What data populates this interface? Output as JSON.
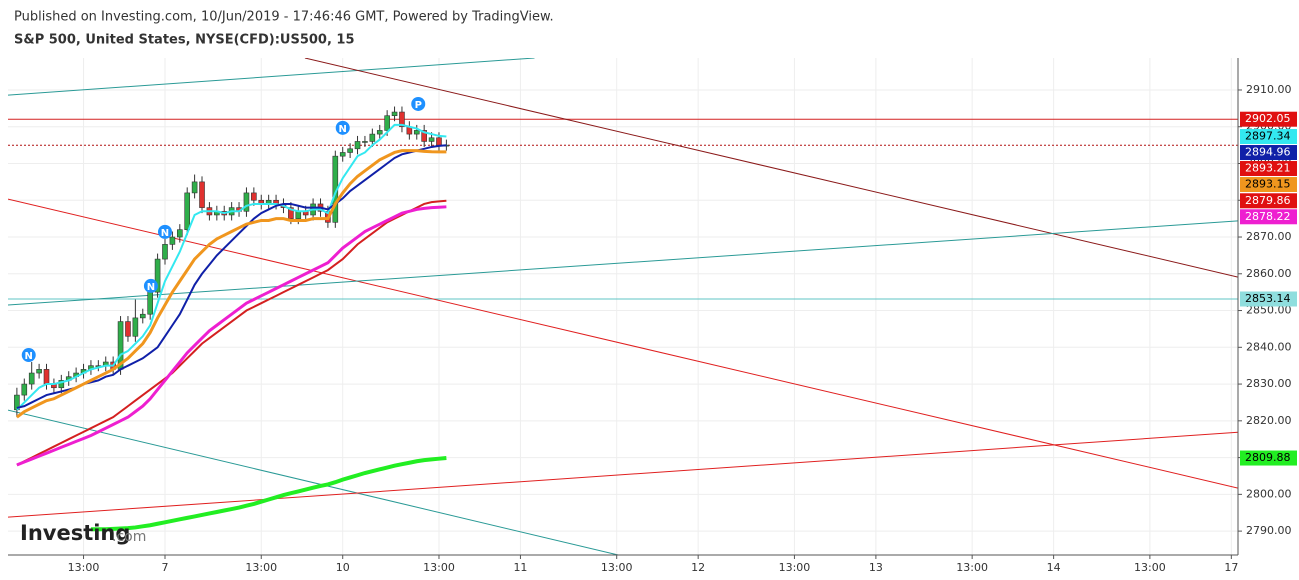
{
  "chart_data": {
    "type": "candlestick",
    "published": "Published on Investing.com, 10/Jun/2019 - 17:46:46 GMT, Powered by TradingView.",
    "title": "S&P 500, United States, NYSE(CFD):US500, 15",
    "logo": "Investing",
    "logo_suffix": ".com",
    "up_color": "#2fae4a",
    "down_color": "#e0312f",
    "x": [
      4,
      5,
      6,
      7,
      8,
      9,
      10,
      11,
      12,
      13,
      14,
      15,
      16,
      17,
      18,
      19,
      20,
      21,
      22,
      23,
      24,
      25,
      26,
      27,
      28,
      29,
      30,
      31,
      32,
      33,
      34,
      35,
      36,
      37,
      38,
      39,
      40,
      41,
      42,
      43,
      44,
      45,
      46,
      47,
      48,
      49,
      50,
      51,
      52,
      53,
      54,
      55,
      56,
      57,
      58,
      59,
      60,
      61,
      62
    ],
    "open": [
      2823,
      2827,
      2830,
      2833,
      2834,
      2830,
      2829,
      2831,
      2832,
      2833,
      2834,
      2835,
      2835,
      2836,
      2834,
      2847,
      2843,
      2848,
      2849,
      2855,
      2864,
      2868,
      2870,
      2872,
      2882,
      2885,
      2878,
      2876,
      2877,
      2876,
      2878,
      2877,
      2882,
      2880,
      2879,
      2880,
      2879,
      2878,
      2875,
      2877,
      2876,
      2879,
      2877,
      2874,
      2892,
      2893,
      2894,
      2896,
      2896,
      2898,
      2899,
      2903,
      2904,
      2900,
      2898,
      2899,
      2896,
      2897,
      2895
    ],
    "high": [
      2829,
      2831.5,
      2836,
      2835.5,
      2835.5,
      2831.5,
      2832.5,
      2833.5,
      2834.5,
      2835.5,
      2836.5,
      2836.5,
      2837.5,
      2837.5,
      2848.5,
      2848.5,
      2853,
      2850.5,
      2856.5,
      2865.5,
      2869.5,
      2871.5,
      2873.5,
      2883.5,
      2887,
      2886.5,
      2879.5,
      2878.5,
      2878.5,
      2879.5,
      2879.5,
      2883.5,
      2883.5,
      2881.5,
      2881.5,
      2881.5,
      2880.5,
      2879.5,
      2878.5,
      2878.5,
      2880.5,
      2880.5,
      2878.5,
      2893.5,
      2894.5,
      2895.5,
      2897.5,
      2897.5,
      2899.5,
      2900.5,
      2904.5,
      2905.5,
      2905.5,
      2901.5,
      2900.5,
      2900.5,
      2898.5,
      2898.5,
      2896.5
    ],
    "low": [
      2821,
      2825.5,
      2828.5,
      2831.5,
      2828.5,
      2827.5,
      2827.5,
      2829.5,
      2830.5,
      2831.5,
      2832.5,
      2833.5,
      2833.5,
      2832.5,
      2832.5,
      2841.5,
      2841.5,
      2846.5,
      2847.5,
      2853.5,
      2862.5,
      2866.5,
      2868.5,
      2870.5,
      2880.5,
      2876.5,
      2874.5,
      2874.5,
      2874.5,
      2874.5,
      2875.5,
      2875.5,
      2878.5,
      2877.5,
      2877.5,
      2877.5,
      2876.5,
      2873.5,
      2873.5,
      2874.5,
      2874.5,
      2875.5,
      2872.5,
      2872.5,
      2890.5,
      2891.5,
      2892.5,
      2894.5,
      2894.5,
      2896.5,
      2897.5,
      2901.5,
      2898.5,
      2896.5,
      2896.5,
      2894.5,
      2894.5,
      2893.5,
      2893.5
    ],
    "close": [
      2827,
      2830,
      2833,
      2834,
      2830,
      2829,
      2831,
      2832,
      2833,
      2834,
      2835,
      2835,
      2836,
      2834,
      2847,
      2843,
      2848,
      2849,
      2855,
      2864,
      2868,
      2870,
      2872,
      2882,
      2885,
      2878,
      2876,
      2877,
      2876,
      2878,
      2877,
      2882,
      2880,
      2879,
      2880,
      2879,
      2878,
      2875,
      2877,
      2876,
      2879,
      2877,
      2874,
      2892,
      2893,
      2894,
      2896,
      2896,
      2898,
      2899,
      2903,
      2904,
      2900,
      2898,
      2899,
      2896,
      2897,
      2895,
      2895
    ],
    "series": [
      {
        "color": "#33e8f0",
        "width": 2,
        "values": [
          2823,
          2825,
          2827,
          2829,
          2830,
          2830,
          2830.5,
          2831,
          2832,
          2833,
          2834,
          2834.5,
          2835,
          2835,
          2838,
          2839,
          2841,
          2843,
          2846,
          2852,
          2858,
          2862,
          2866,
          2871,
          2876,
          2877,
          2877,
          2877,
          2876.5,
          2877,
          2877,
          2878.5,
          2879,
          2879,
          2879,
          2879,
          2878.5,
          2877.5,
          2877,
          2877,
          2877.5,
          2877.5,
          2876.5,
          2882,
          2886,
          2889,
          2892,
          2893,
          2895,
          2896.5,
          2898.5,
          2900.5,
          2900.5,
          2900,
          2899.5,
          2898.5,
          2898,
          2897.5,
          2897.34
        ]
      },
      {
        "color": "#1020a8",
        "width": 2,
        "values": [
          2823.5,
          2824,
          2825,
          2826,
          2827,
          2827.5,
          2828,
          2828.5,
          2829,
          2830,
          2830.5,
          2831,
          2832,
          2832.5,
          2834,
          2835,
          2836,
          2837,
          2838.5,
          2840,
          2843,
          2846,
          2849,
          2853,
          2857,
          2860,
          2862.5,
          2865,
          2867,
          2869,
          2871,
          2873,
          2875,
          2876.5,
          2877.5,
          2878.5,
          2879,
          2879,
          2878.5,
          2878,
          2878,
          2878,
          2877.5,
          2879,
          2880.5,
          2882.5,
          2884,
          2885.5,
          2887,
          2888.5,
          2890,
          2891.5,
          2892.5,
          2893,
          2893.5,
          2894,
          2894.5,
          2894.8,
          2894.96
        ]
      },
      {
        "color": "#f0961e",
        "width": 3,
        "values": [
          2821,
          2822.5,
          2823.5,
          2824.5,
          2825.5,
          2826,
          2827,
          2828,
          2829,
          2830,
          2831,
          2832,
          2833,
          2834,
          2835.5,
          2837,
          2839,
          2841,
          2844,
          2848,
          2851.5,
          2855,
          2858,
          2861,
          2864,
          2866,
          2868,
          2869.5,
          2870.5,
          2871.5,
          2872.5,
          2873.5,
          2874,
          2874.5,
          2874.5,
          2875,
          2875,
          2874.5,
          2874.5,
          2874.5,
          2875,
          2875,
          2875,
          2879,
          2882,
          2884.5,
          2886.5,
          2888,
          2889.5,
          2891,
          2892,
          2893,
          2893.5,
          2893.5,
          2893.5,
          2893.3,
          2893.2,
          2893.15,
          2893.15
        ]
      },
      {
        "color": "#d42020",
        "width": 2,
        "values": [
          2808,
          2809,
          2810,
          2811,
          2812,
          2813,
          2814,
          2815,
          2816,
          2817,
          2818,
          2819,
          2820,
          2821,
          2822.5,
          2824,
          2825.5,
          2827,
          2828.5,
          2830,
          2831.5,
          2833,
          2835,
          2837,
          2839,
          2841,
          2842.5,
          2844,
          2845.5,
          2847,
          2848.5,
          2850,
          2851,
          2852,
          2853,
          2854,
          2855,
          2856,
          2857,
          2858,
          2859,
          2860,
          2861,
          2862.5,
          2864,
          2866,
          2868,
          2869.5,
          2871,
          2872.5,
          2874,
          2875,
          2876,
          2877,
          2878,
          2879,
          2879.5,
          2879.7,
          2879.86
        ]
      },
      {
        "color": "#ee1fd0",
        "width": 3,
        "values": [
          2808,
          2808.8,
          2809.6,
          2810.4,
          2811.2,
          2812,
          2812.8,
          2813.6,
          2814.4,
          2815.2,
          2816,
          2817,
          2818,
          2819,
          2820,
          2821,
          2822.5,
          2824,
          2826,
          2828.5,
          2831,
          2833.5,
          2836,
          2838.5,
          2840.5,
          2842.5,
          2844.5,
          2846,
          2847.5,
          2849,
          2850.5,
          2852,
          2853,
          2854,
          2855,
          2856,
          2857,
          2858,
          2859,
          2860,
          2861,
          2862,
          2863,
          2865,
          2867,
          2868.5,
          2870,
          2871.5,
          2872.5,
          2873.5,
          2874.5,
          2875.5,
          2876.5,
          2877,
          2877.5,
          2877.8,
          2878,
          2878.1,
          2878.22
        ]
      },
      {
        "color": "#22ee22",
        "width": 4,
        "values": [
          null,
          null,
          null,
          null,
          null,
          null,
          null,
          null,
          null,
          null,
          2790.5,
          2790.5,
          2790.5,
          2790.6,
          2790.7,
          2790.8,
          2791,
          2791.3,
          2791.6,
          2792,
          2792.4,
          2792.8,
          2793.2,
          2793.6,
          2794,
          2794.4,
          2794.8,
          2795.2,
          2795.6,
          2796,
          2796.4,
          2796.9,
          2797.4,
          2798,
          2798.6,
          2799.2,
          2799.8,
          2800.3,
          2800.8,
          2801.3,
          2801.8,
          2802.3,
          2802.7,
          2803.3,
          2804,
          2804.6,
          2805.2,
          2805.8,
          2806.3,
          2806.8,
          2807.3,
          2807.8,
          2808.2,
          2808.6,
          2809,
          2809.3,
          2809.5,
          2809.7,
          2809.88
        ]
      }
    ],
    "trend_lines": [
      {
        "x": [
          2.8,
          73.9
        ],
        "y": [
          2908.6,
          2918.7
        ],
        "color": "#2a9a96"
      },
      {
        "x": [
          42.9,
          168.9
        ],
        "y": [
          2918.7,
          2859.1
        ],
        "color": "#8b1a1a"
      },
      {
        "x": [
          2.8,
          168.9
        ],
        "y": [
          2880.3,
          2801.7
        ],
        "color": "#e02020"
      },
      {
        "x": [
          2.8,
          168.9
        ],
        "y": [
          2851.5,
          2874.4
        ],
        "color": "#2a9a96"
      },
      {
        "x": [
          2.8,
          85.2
        ],
        "y": [
          2822.9,
          2783.5
        ],
        "color": "#2a9a96"
      },
      {
        "x": [
          2.8,
          168.9
        ],
        "y": [
          2793.8,
          2816.9
        ],
        "color": "#e02020"
      }
    ],
    "hlines": [
      {
        "value": 2902.05,
        "color": "#d42020",
        "dashed": false
      },
      {
        "value": 2894.96,
        "color": "#b01010",
        "dashed": true
      },
      {
        "value": 2853.14,
        "color": "#5fc4c4",
        "dashed": false
      }
    ],
    "price_tags": [
      {
        "value": 2902.05,
        "color": "#e01010",
        "text_color": "#ffffff"
      },
      {
        "value": 2897.34,
        "color": "#33e8f0",
        "text_color": "#000000"
      },
      {
        "value": 2894.96,
        "color": "#1020a8",
        "text_color": "#ffffff"
      },
      {
        "value": 2893.21,
        "color": "#e01010",
        "text_color": "#ffffff"
      },
      {
        "value": 2893.15,
        "color": "#f0961e",
        "text_color": "#000000"
      },
      {
        "value": 2879.86,
        "color": "#e01010",
        "text_color": "#ffffff"
      },
      {
        "value": 2878.22,
        "color": "#ee1fd0",
        "text_color": "#ffffff"
      },
      {
        "value": 2853.14,
        "color": "#8fdede",
        "text_color": "#000000"
      },
      {
        "value": 2809.88,
        "color": "#22ee22",
        "text_color": "#000000"
      }
    ],
    "annotations": [
      {
        "text": "N",
        "x": 5.6,
        "y": 2837.9
      },
      {
        "text": "N",
        "x": 22.1,
        "y": 2856.7
      },
      {
        "text": "N",
        "x": 24,
        "y": 2871.4
      },
      {
        "text": "N",
        "x": 48,
        "y": 2899.7
      },
      {
        "text": "P",
        "x": 58.2,
        "y": 2906.2
      }
    ],
    "xlim": [
      2.8,
      168.9
    ],
    "ylim": [
      2783.5,
      2918.7
    ],
    "xticks": [
      {
        "value": 13,
        "label": "13:00"
      },
      {
        "value": 24,
        "label": "7"
      },
      {
        "value": 37,
        "label": "13:00"
      },
      {
        "value": 48,
        "label": "10"
      },
      {
        "value": 61,
        "label": "13:00"
      },
      {
        "value": 72,
        "label": "11"
      },
      {
        "value": 85,
        "label": "13:00"
      },
      {
        "value": 96,
        "label": "12"
      },
      {
        "value": 109,
        "label": "13:00"
      },
      {
        "value": 120,
        "label": "13"
      },
      {
        "value": 133,
        "label": "13:00"
      },
      {
        "value": 144,
        "label": "14"
      },
      {
        "value": 157,
        "label": "13:00"
      },
      {
        "value": 168,
        "label": "17"
      }
    ],
    "yticks": [
      {
        "value": 2790,
        "label": "2790.00"
      },
      {
        "value": 2800,
        "label": "2800.00"
      },
      {
        "value": 2810,
        "label": "2810.00"
      },
      {
        "value": 2820,
        "label": "2820.00"
      },
      {
        "value": 2830,
        "label": "2830.00"
      },
      {
        "value": 2840,
        "label": "2840.00"
      },
      {
        "value": 2850,
        "label": "2850.00"
      },
      {
        "value": 2860,
        "label": "2860.00"
      },
      {
        "value": 2870,
        "label": "2870.00"
      },
      {
        "value": 2880,
        "label": "2880.00"
      },
      {
        "value": 2890,
        "label": "2890.00"
      },
      {
        "value": 2900,
        "label": "2900.00"
      },
      {
        "value": 2910,
        "label": "2910.00"
      }
    ],
    "grid": true
  }
}
